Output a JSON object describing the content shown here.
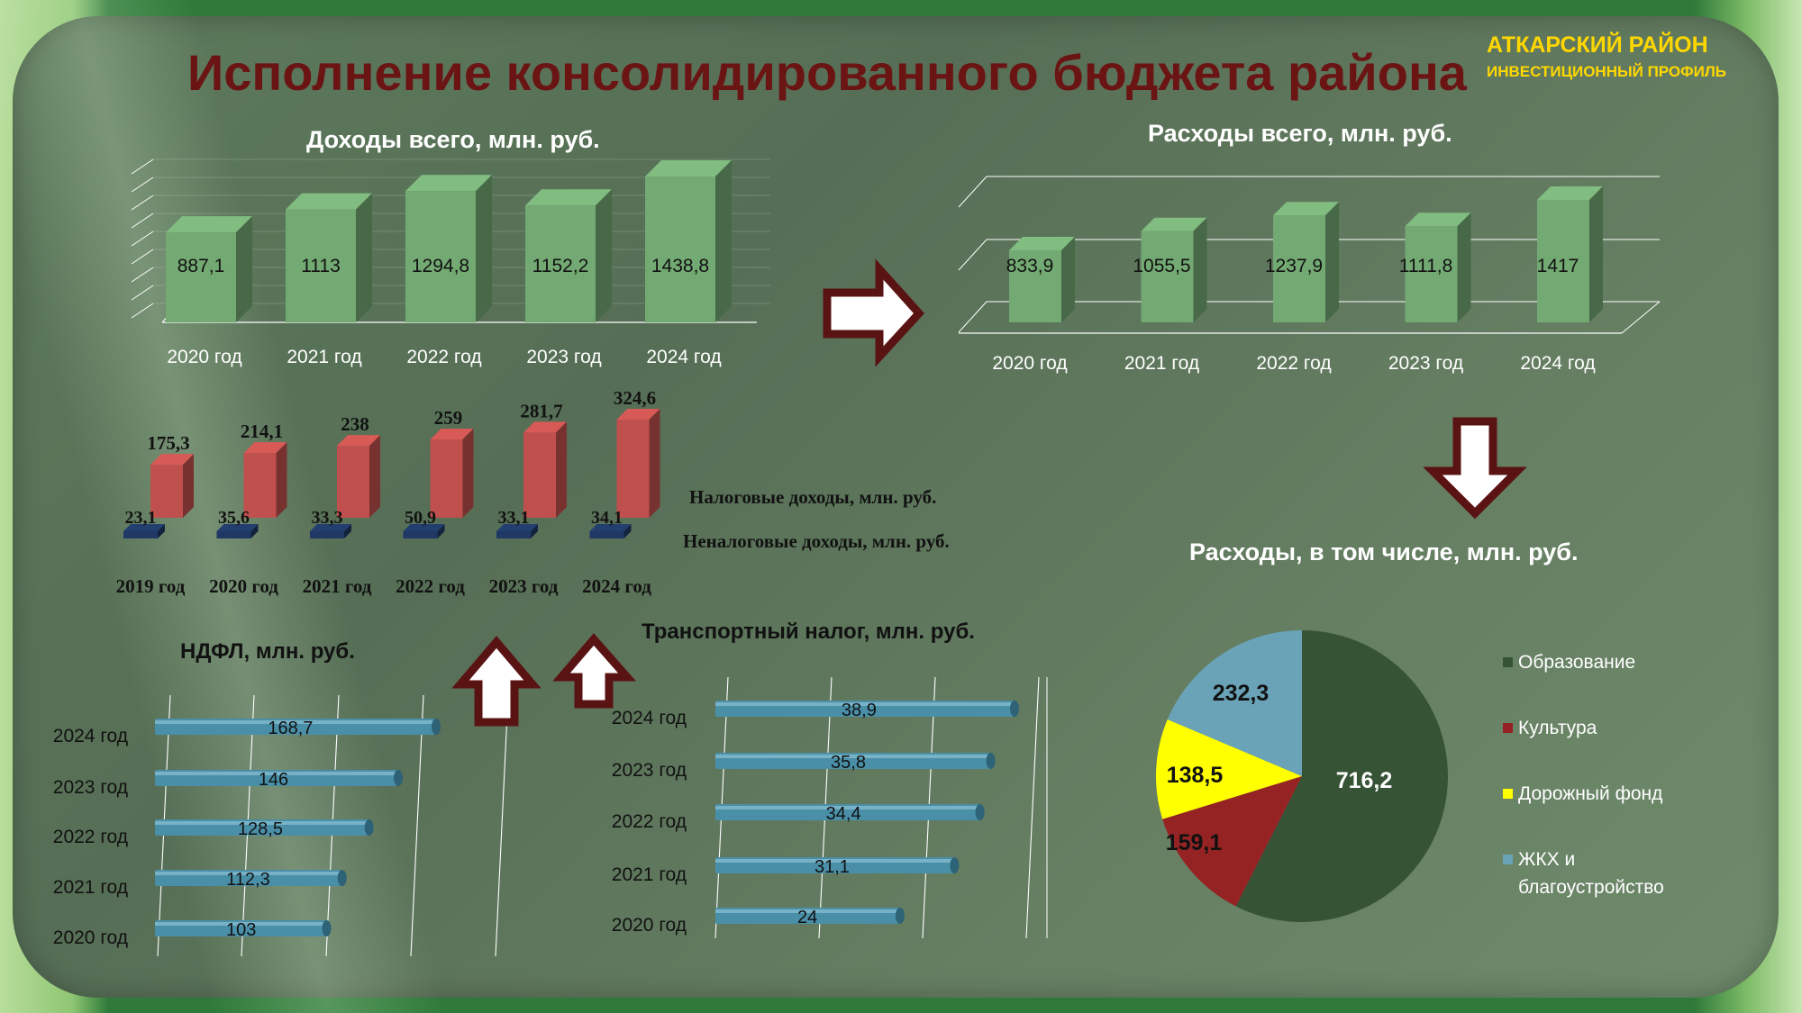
{
  "header": {
    "title": "Исполнение консолидированного бюджета района",
    "district": "АТКАРСКИЙ РАЙОН",
    "profile": "ИНВЕСТИЦИОННЫЙ ПРОФИЛЬ"
  },
  "colors": {
    "title": "#6b1414",
    "district": "#ffd700",
    "bar_green": "#73a973",
    "bar_red": "#c0504d",
    "bar_blue": "#1f3864",
    "bar_teal": "#4a8fa8",
    "pie_dark_green": "#375336",
    "pie_red": "#952324",
    "pie_yellow": "#ffff00",
    "pie_light_blue": "#6aa3b7",
    "arrow_border": "#5a1313"
  },
  "chart_data": [
    {
      "type": "bar",
      "title": "Доходы всего, млн. руб.",
      "categories": [
        "2020 год",
        "2021 год",
        "2022 год",
        "2023 год",
        "2024 год"
      ],
      "values": [
        887.1,
        1113,
        1294.8,
        1152.2,
        1438.8
      ],
      "value_labels": [
        "887,1",
        "1113",
        "1294,8",
        "1152,2",
        "1438,8"
      ],
      "style": "3d",
      "grid": true
    },
    {
      "type": "bar",
      "title": "Расходы всего, млн. руб.",
      "categories": [
        "2020 год",
        "2021 год",
        "2022 год",
        "2023 год",
        "2024 год"
      ],
      "values": [
        833.9,
        1055.5,
        1237.9,
        1111.8,
        1417
      ],
      "value_labels": [
        "833,9",
        "1055,5",
        "1237,9",
        "1111,8",
        "1417"
      ],
      "style": "3d",
      "grid": true
    },
    {
      "type": "bar",
      "title": "",
      "categories": [
        "2019 год",
        "2020 год",
        "2021 год",
        "2022 год",
        "2023 год",
        "2024 год"
      ],
      "series": [
        {
          "name": "Налоговые доходы, млн. руб.",
          "values": [
            175.3,
            214.1,
            238,
            259,
            281.7,
            324.6
          ],
          "value_labels": [
            "175,3",
            "214,1",
            "238",
            "259",
            "281,7",
            "324,6"
          ]
        },
        {
          "name": "Неналоговые доходы, млн. руб.",
          "values": [
            23.1,
            35.6,
            33.3,
            50.9,
            33.1,
            34.1
          ],
          "value_labels": [
            "23,1",
            "35,6",
            "33,3",
            "50,9",
            "33,1",
            "34,1"
          ]
        }
      ],
      "style": "3d",
      "legend": "right"
    },
    {
      "type": "bar",
      "orientation": "horizontal",
      "title": "НДФЛ, млн. руб.",
      "categories": [
        "2024 год",
        "2023 год",
        "2022 год",
        "2021 год",
        "2020 год"
      ],
      "values": [
        168.7,
        146,
        128.5,
        112.3,
        103
      ],
      "value_labels": [
        "168,7",
        "146",
        "128,5",
        "112,3",
        "103"
      ],
      "grid": true
    },
    {
      "type": "bar",
      "orientation": "horizontal",
      "title": "Транспортный налог, млн. руб.",
      "categories": [
        "2024 год",
        "2023 год",
        "2022 год",
        "2021 год",
        "2020 год"
      ],
      "values": [
        38.9,
        35.8,
        34.4,
        31.1,
        24
      ],
      "value_labels": [
        "38,9",
        "35,8",
        "34,4",
        "31,1",
        "24"
      ],
      "grid": true
    },
    {
      "type": "pie",
      "title": "Расходы, в том числе, млн. руб.",
      "categories": [
        "Образование",
        "Культура",
        "Дорожный фонд",
        "ЖКХ и благоустройство"
      ],
      "legend_lines": [
        [
          "Образование"
        ],
        [
          "Культура"
        ],
        [
          "Дорожный фонд"
        ],
        [
          "ЖКХ и",
          "благоустройство"
        ]
      ],
      "values": [
        716.2,
        159.1,
        138.5,
        232.3
      ],
      "value_labels": [
        "716,2",
        "159,1",
        "138,5",
        "232,3"
      ],
      "legend": "right"
    }
  ]
}
